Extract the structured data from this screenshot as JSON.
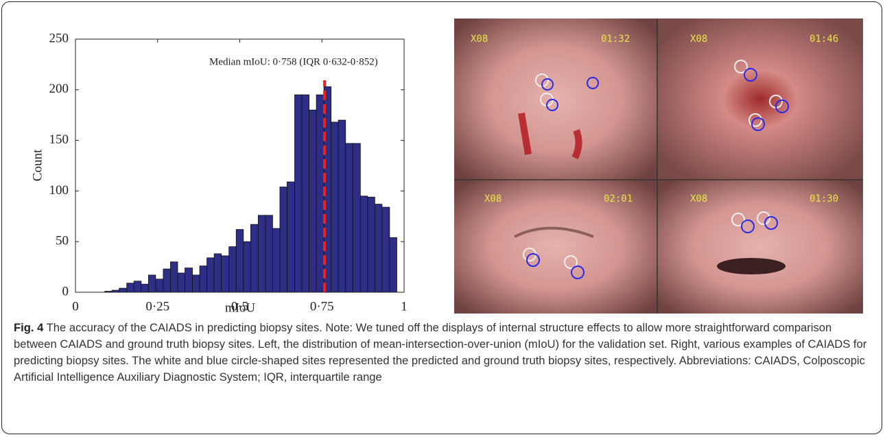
{
  "chart_data": {
    "type": "histogram",
    "xlabel": "mIoU",
    "ylabel": "Count",
    "bins": [
      0.089,
      0.111,
      0.133,
      0.156,
      0.178,
      0.2,
      0.222,
      0.244,
      0.267,
      0.289,
      0.311,
      0.333,
      0.356,
      0.378,
      0.4,
      0.422,
      0.444,
      0.467,
      0.489,
      0.511,
      0.533,
      0.556,
      0.578,
      0.6,
      0.622,
      0.644,
      0.667,
      0.689,
      0.711,
      0.733,
      0.756,
      0.778,
      0.8,
      0.822,
      0.844,
      0.867,
      0.889,
      0.911,
      0.933,
      0.956,
      0.978
    ],
    "values": [
      1,
      2,
      4,
      9,
      11,
      8,
      17,
      13,
      23,
      30,
      19,
      24,
      17,
      26,
      34,
      38,
      36,
      45,
      62,
      50,
      67,
      76,
      76,
      63,
      104,
      109,
      195,
      195,
      180,
      195,
      203,
      168,
      170,
      147,
      147,
      95,
      94,
      87,
      84,
      54
    ],
    "color": "#2e2e86",
    "xlim": [
      0,
      1
    ],
    "xticks": [
      0,
      {
        "value": 0.25,
        "label": "0·25"
      },
      {
        "value": 0.5,
        "label": "0·5"
      },
      {
        "value": 0.75,
        "label": "0·75"
      },
      1
    ],
    "ylim": [
      0,
      250
    ],
    "yticks": [
      0,
      50,
      100,
      150,
      200,
      250
    ],
    "median": 0.758,
    "median_color": "#e8251c",
    "annotation": "Median mIoU: 0·758 (IQR 0·632-0·852)"
  },
  "panels": [
    {
      "zoom": "X08",
      "time": "01:32"
    },
    {
      "zoom": "X08",
      "time": "01:46"
    },
    {
      "zoom": "X08",
      "time": "02:01"
    },
    {
      "zoom": "X08",
      "time": "01:30"
    }
  ],
  "caption": {
    "label": "Fig. 4",
    "text": "The accuracy of the CAIADS in predicting biopsy sites. Note: We tuned off the displays of internal structure effects to allow more straightforward comparison between CAIADS and ground truth biopsy sites. Left, the distribution of mean-intersection-over-union (mIoU) for the validation set. Right, various examples of CAIADS for predicting biopsy sites. The white and blue circle-shaped sites represented the predicted and ground truth biopsy sites, respectively. Abbreviations: CAIADS, Colposcopic Artificial Intelligence Auxiliary Diagnostic System; IQR, interquartile range"
  }
}
